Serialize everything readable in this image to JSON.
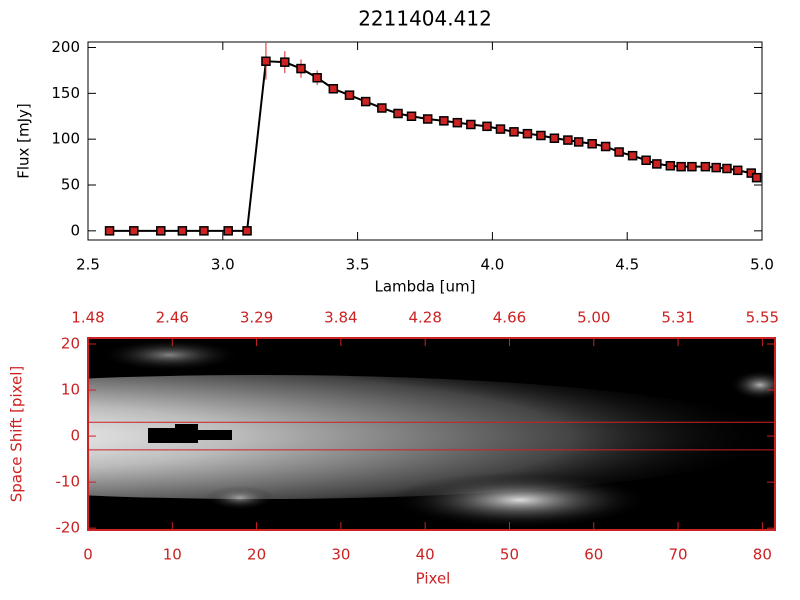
{
  "chart_data": [
    {
      "type": "line",
      "title": "2211404.412",
      "x_label": "Lambda [um]",
      "y_label": "Flux [mJy]",
      "x": [
        2.58,
        2.67,
        2.77,
        2.85,
        2.93,
        3.02,
        3.09,
        3.16,
        3.23,
        3.29,
        3.35,
        3.41,
        3.47,
        3.53,
        3.59,
        3.65,
        3.7,
        3.76,
        3.82,
        3.87,
        3.92,
        3.98,
        4.03,
        4.08,
        4.13,
        4.18,
        4.23,
        4.28,
        4.32,
        4.37,
        4.42,
        4.47,
        4.52,
        4.57,
        4.61,
        4.66,
        4.7,
        4.74,
        4.79,
        4.83,
        4.87,
        4.91,
        4.96,
        4.98
      ],
      "values": [
        0,
        0,
        0,
        0,
        0,
        0,
        0,
        185,
        184,
        177,
        167,
        155,
        148,
        141,
        134,
        128,
        125,
        122,
        120,
        118,
        116,
        114,
        111,
        108,
        106,
        104,
        101,
        99,
        97,
        95,
        92,
        86,
        82,
        77,
        73,
        71,
        70,
        70,
        70,
        69,
        68,
        66,
        63,
        58
      ],
      "errors": [
        2,
        2,
        2,
        2,
        2,
        2,
        2,
        20,
        12,
        10,
        8,
        4,
        3,
        3,
        3,
        3,
        3,
        3,
        3,
        3,
        3,
        3,
        3,
        3,
        3,
        3,
        3,
        3,
        3,
        3,
        3,
        3,
        3,
        3,
        3,
        3,
        3,
        3,
        3,
        3,
        3,
        3,
        4,
        5
      ],
      "color": "#000000",
      "marker_color": "#cc2222",
      "error_color": "#dd2222",
      "xlim": [
        2.5,
        5.0
      ],
      "xticks": [
        2.5,
        {
          "value": 3,
          "label": "3.0"
        },
        3.5,
        {
          "value": 4,
          "label": "4.0"
        },
        4.5,
        {
          "value": 5,
          "label": "5.0"
        }
      ],
      "ylim": [
        -10,
        206
      ],
      "yticks": [
        0,
        50,
        100,
        150,
        200
      ]
    },
    {
      "type": "image",
      "x_label": "Pixel",
      "y_label": "Space Shift [pixel]",
      "color": "#cc2222",
      "xlim": [
        0,
        81.5
      ],
      "xticks": [
        0,
        10,
        20,
        30,
        40,
        50,
        60,
        70,
        80
      ],
      "x2ticks": [
        {
          "value": 0,
          "label": "1.48"
        },
        {
          "value": 10,
          "label": "2.46"
        },
        {
          "value": 20,
          "label": "3.29"
        },
        {
          "value": 30,
          "label": "3.84"
        },
        {
          "value": 40,
          "label": "4.28"
        },
        {
          "value": 50,
          "label": "4.66"
        },
        {
          "value": 60,
          "label": "5.00"
        },
        {
          "value": 70,
          "label": "5.31"
        },
        {
          "value": 80,
          "label": "5.55"
        }
      ],
      "ylim": [
        -20.4,
        21.3
      ],
      "yticks": [
        -20,
        -10,
        0,
        10,
        20
      ],
      "band": [
        -3,
        3
      ]
    }
  ]
}
